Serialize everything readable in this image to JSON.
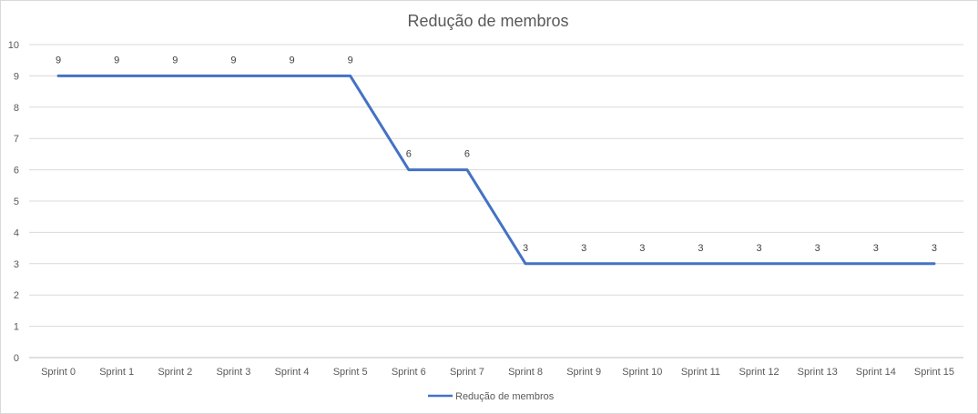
{
  "chart_data": {
    "type": "line",
    "title": "Redução de membros",
    "xlabel": "",
    "ylabel": "",
    "categories": [
      "Sprint 0",
      "Sprint 1",
      "Sprint 2",
      "Sprint 3",
      "Sprint 4",
      "Sprint 5",
      "Sprint 6",
      "Sprint 7",
      "Sprint 8",
      "Sprint 9",
      "Sprint 10",
      "Sprint 11",
      "Sprint 12",
      "Sprint 13",
      "Sprint 14",
      "Sprint 15"
    ],
    "series": [
      {
        "name": "Redução de membros",
        "values": [
          9,
          9,
          9,
          9,
          9,
          9,
          6,
          6,
          3,
          3,
          3,
          3,
          3,
          3,
          3,
          3
        ],
        "color": "#4472c4"
      }
    ],
    "ylim": [
      0,
      10
    ],
    "yticks": [
      0,
      1,
      2,
      3,
      4,
      5,
      6,
      7,
      8,
      9,
      10
    ],
    "grid": true,
    "legend": "bottom",
    "data_labels": true
  }
}
